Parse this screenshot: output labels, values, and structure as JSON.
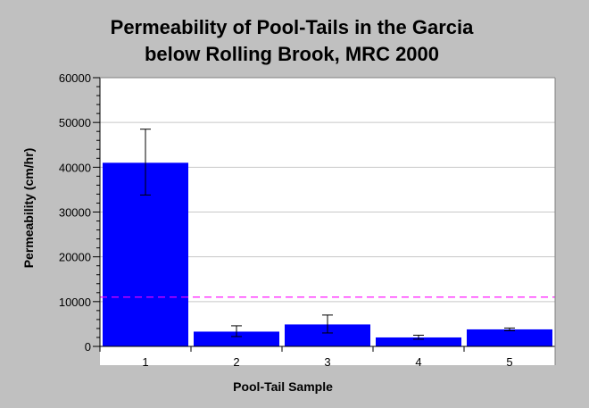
{
  "chart_data": {
    "type": "bar",
    "title_line1": "Permeability of Pool-Tails in the Garcia",
    "title_line2": "below Rolling Brook, MRC 2000",
    "xlabel": "Pool-Tail Sample",
    "ylabel": "Permeability (cm/hr)",
    "categories": [
      "1",
      "2",
      "3",
      "4",
      "5"
    ],
    "values": [
      41000,
      3300,
      4900,
      2000,
      3800
    ],
    "error_low": [
      33800,
      2200,
      3000,
      1600,
      3500
    ],
    "error_high": [
      48500,
      4600,
      7000,
      2500,
      4100
    ],
    "ylim": [
      0,
      60000
    ],
    "yticks": [
      "0",
      "10000",
      "20000",
      "30000",
      "40000",
      "50000",
      "60000"
    ],
    "reference_line": 11000,
    "grid": true,
    "colors": {
      "bar": "#0000ff",
      "reference_line": "#ff00ff",
      "plot_background": "#ffffff",
      "page_background": "#c0c0c0"
    }
  }
}
